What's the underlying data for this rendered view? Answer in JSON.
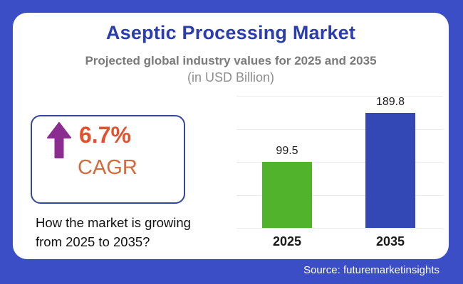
{
  "frame": {
    "background_color": "#3B4EC5",
    "card_color": "#FFFFFF"
  },
  "header": {
    "title": "Aseptic Processing Market",
    "title_color": "#2B3CAE",
    "subtitle": "Projected global industry values for 2025 and 2035",
    "unit_note": "(in USD Billion)"
  },
  "cagr": {
    "icon": "up-arrow-icon",
    "arrow_color": "#8B2D90",
    "value": "6.7%",
    "value_color": "#E2512C",
    "label": "CAGR",
    "label_color": "#D4693B",
    "border_color": "#33479E"
  },
  "question": "How the market is growing from 2025 to 2035?",
  "source": "Source: futuremarketinsights",
  "chart_data": {
    "type": "bar",
    "categories": [
      "2025",
      "2035"
    ],
    "values": [
      99.5,
      189.8
    ],
    "value_labels": [
      "99.5",
      "189.8"
    ],
    "bar_colors": [
      "#51B32C",
      "#3347B5"
    ],
    "title": "Aseptic Processing Market",
    "subtitle": "Projected global industry values for 2025 and 2035",
    "unit": "USD Billion",
    "xlabel": "",
    "ylabel": "",
    "ylim": [
      0,
      200
    ],
    "gridline_step": 50,
    "grid": true,
    "legend": false
  }
}
